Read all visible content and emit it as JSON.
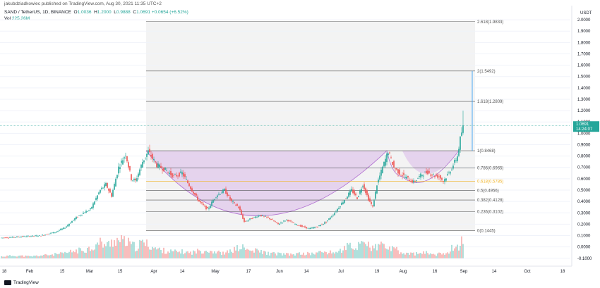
{
  "header": {
    "published": "jakubdziadkowiec published on TradingView.com, Aug 30, 2021 11:35 UTC+2"
  },
  "legend": {
    "symbol": "SAND / TetherUS, 1D, BINANCE",
    "open": "1.0036",
    "high": "1.2000",
    "low": "0.9888",
    "close": "1.0691",
    "change": "+0.0654 (+6.52%)",
    "vol_label": "Vol",
    "vol_value": "225.26M"
  },
  "branding": {
    "name": "TradingView"
  },
  "colors": {
    "up": "#26a69a",
    "down": "#ef5350",
    "cup": "#d9b8e8",
    "cupStroke": "#b06fd0",
    "fib": "#9e9e9e",
    "goldFib": "#f0b429",
    "target": "#2196f3"
  },
  "chart_data": {
    "type": "candlestick",
    "currency": "USDT",
    "y_ticks": [
      "2.0000",
      "1.9000",
      "1.8000",
      "1.7000",
      "1.6000",
      "1.5000",
      "1.4000",
      "1.3000",
      "1.2000",
      "1.1000",
      "1.0000",
      "0.9000",
      "0.8000",
      "0.7000",
      "0.6000",
      "0.5000",
      "0.4000",
      "0.3000",
      "0.2000",
      "0.1000",
      "0.0000",
      "-0.1000"
    ],
    "x_ticks": [
      "18",
      "Feb",
      "15",
      "Mar",
      "15",
      "Apr",
      "14",
      "May",
      "17",
      "Jun",
      "14",
      "Jul",
      "19",
      "Aug",
      "16",
      "Sep",
      "14",
      "Oct",
      "18"
    ],
    "last_price": "1.0691",
    "countdown": "14:24:07",
    "fib_levels": [
      {
        "label": "2.618(1.9833)",
        "value": 1.9833
      },
      {
        "label": "2(1.5492)",
        "value": 1.5492
      },
      {
        "label": "1.618(1.2809)",
        "value": 1.2809
      },
      {
        "label": "1(0.8468)",
        "value": 0.8468
      },
      {
        "label": "0.786(0.6965)",
        "value": 0.6965
      },
      {
        "label": "0.618(0.5785)",
        "value": 0.5785
      },
      {
        "label": "0.5(0.4956)",
        "value": 0.4956
      },
      {
        "label": "0.382(0.4128)",
        "value": 0.4128
      },
      {
        "label": "0.236(0.3102)",
        "value": 0.3102
      },
      {
        "label": "0(0.1445)",
        "value": 0.1445
      }
    ],
    "price_path": [
      [
        0,
        0.08
      ],
      [
        14,
        0.09
      ],
      [
        28,
        0.1
      ],
      [
        38,
        0.13
      ],
      [
        45,
        0.17
      ],
      [
        52,
        0.25
      ],
      [
        58,
        0.3
      ],
      [
        63,
        0.33
      ],
      [
        70,
        0.5
      ],
      [
        74,
        0.55
      ],
      [
        78,
        0.45
      ],
      [
        83,
        0.7
      ],
      [
        88,
        0.82
      ],
      [
        92,
        0.6
      ],
      [
        95,
        0.58
      ],
      [
        100,
        0.75
      ],
      [
        104,
        0.84
      ],
      [
        110,
        0.72
      ],
      [
        116,
        0.68
      ],
      [
        122,
        0.62
      ],
      [
        128,
        0.65
      ],
      [
        135,
        0.5
      ],
      [
        140,
        0.4
      ],
      [
        146,
        0.33
      ],
      [
        152,
        0.45
      ],
      [
        158,
        0.5
      ],
      [
        163,
        0.4
      ],
      [
        168,
        0.35
      ],
      [
        172,
        0.22
      ],
      [
        177,
        0.25
      ],
      [
        183,
        0.28
      ],
      [
        190,
        0.25
      ],
      [
        196,
        0.2
      ],
      [
        202,
        0.24
      ],
      [
        208,
        0.2
      ],
      [
        213,
        0.18
      ],
      [
        218,
        0.16
      ],
      [
        224,
        0.18
      ],
      [
        230,
        0.22
      ],
      [
        236,
        0.3
      ],
      [
        242,
        0.4
      ],
      [
        248,
        0.5
      ],
      [
        252,
        0.43
      ],
      [
        256,
        0.55
      ],
      [
        260,
        0.42
      ],
      [
        263,
        0.35
      ],
      [
        266,
        0.55
      ],
      [
        270,
        0.7
      ],
      [
        274,
        0.84
      ],
      [
        278,
        0.7
      ],
      [
        282,
        0.65
      ],
      [
        288,
        0.6
      ],
      [
        292,
        0.57
      ],
      [
        298,
        0.64
      ],
      [
        302,
        0.66
      ],
      [
        306,
        0.63
      ],
      [
        310,
        0.62
      ],
      [
        313,
        0.58
      ],
      [
        317,
        0.65
      ],
      [
        320,
        0.72
      ],
      [
        323,
        0.8
      ],
      [
        325,
        0.95
      ],
      [
        327,
        1.07
      ]
    ],
    "volume_path": [
      [
        0,
        0.02
      ],
      [
        10,
        0.03
      ],
      [
        20,
        0.02
      ],
      [
        28,
        0.03
      ],
      [
        36,
        0.04
      ],
      [
        44,
        0.05
      ],
      [
        52,
        0.08
      ],
      [
        58,
        0.09
      ],
      [
        65,
        0.12
      ],
      [
        70,
        0.17
      ],
      [
        75,
        0.14
      ],
      [
        80,
        0.2
      ],
      [
        88,
        0.18
      ],
      [
        95,
        0.12
      ],
      [
        100,
        0.17
      ],
      [
        105,
        0.14
      ],
      [
        110,
        0.1
      ],
      [
        116,
        0.08
      ],
      [
        122,
        0.07
      ],
      [
        128,
        0.07
      ],
      [
        134,
        0.06
      ],
      [
        140,
        0.08
      ],
      [
        146,
        0.09
      ],
      [
        152,
        0.07
      ],
      [
        158,
        0.05
      ],
      [
        164,
        0.09
      ],
      [
        170,
        0.12
      ],
      [
        176,
        0.08
      ],
      [
        182,
        0.08
      ],
      [
        190,
        0.05
      ],
      [
        196,
        0.05
      ],
      [
        204,
        0.04
      ],
      [
        212,
        0.05
      ],
      [
        220,
        0.05
      ],
      [
        228,
        0.07
      ],
      [
        234,
        0.06
      ],
      [
        240,
        0.08
      ],
      [
        246,
        0.14
      ],
      [
        250,
        0.08
      ],
      [
        254,
        0.17
      ],
      [
        258,
        0.2
      ],
      [
        262,
        0.1
      ],
      [
        266,
        0.12
      ],
      [
        270,
        0.15
      ],
      [
        275,
        0.1
      ],
      [
        280,
        0.09
      ],
      [
        284,
        0.05
      ],
      [
        290,
        0.05
      ],
      [
        296,
        0.05
      ],
      [
        302,
        0.06
      ],
      [
        308,
        0.04
      ],
      [
        312,
        0.05
      ],
      [
        316,
        0.07
      ],
      [
        320,
        0.12
      ],
      [
        324,
        0.14
      ],
      [
        326,
        0.18
      ],
      [
        327,
        0.15
      ]
    ]
  }
}
